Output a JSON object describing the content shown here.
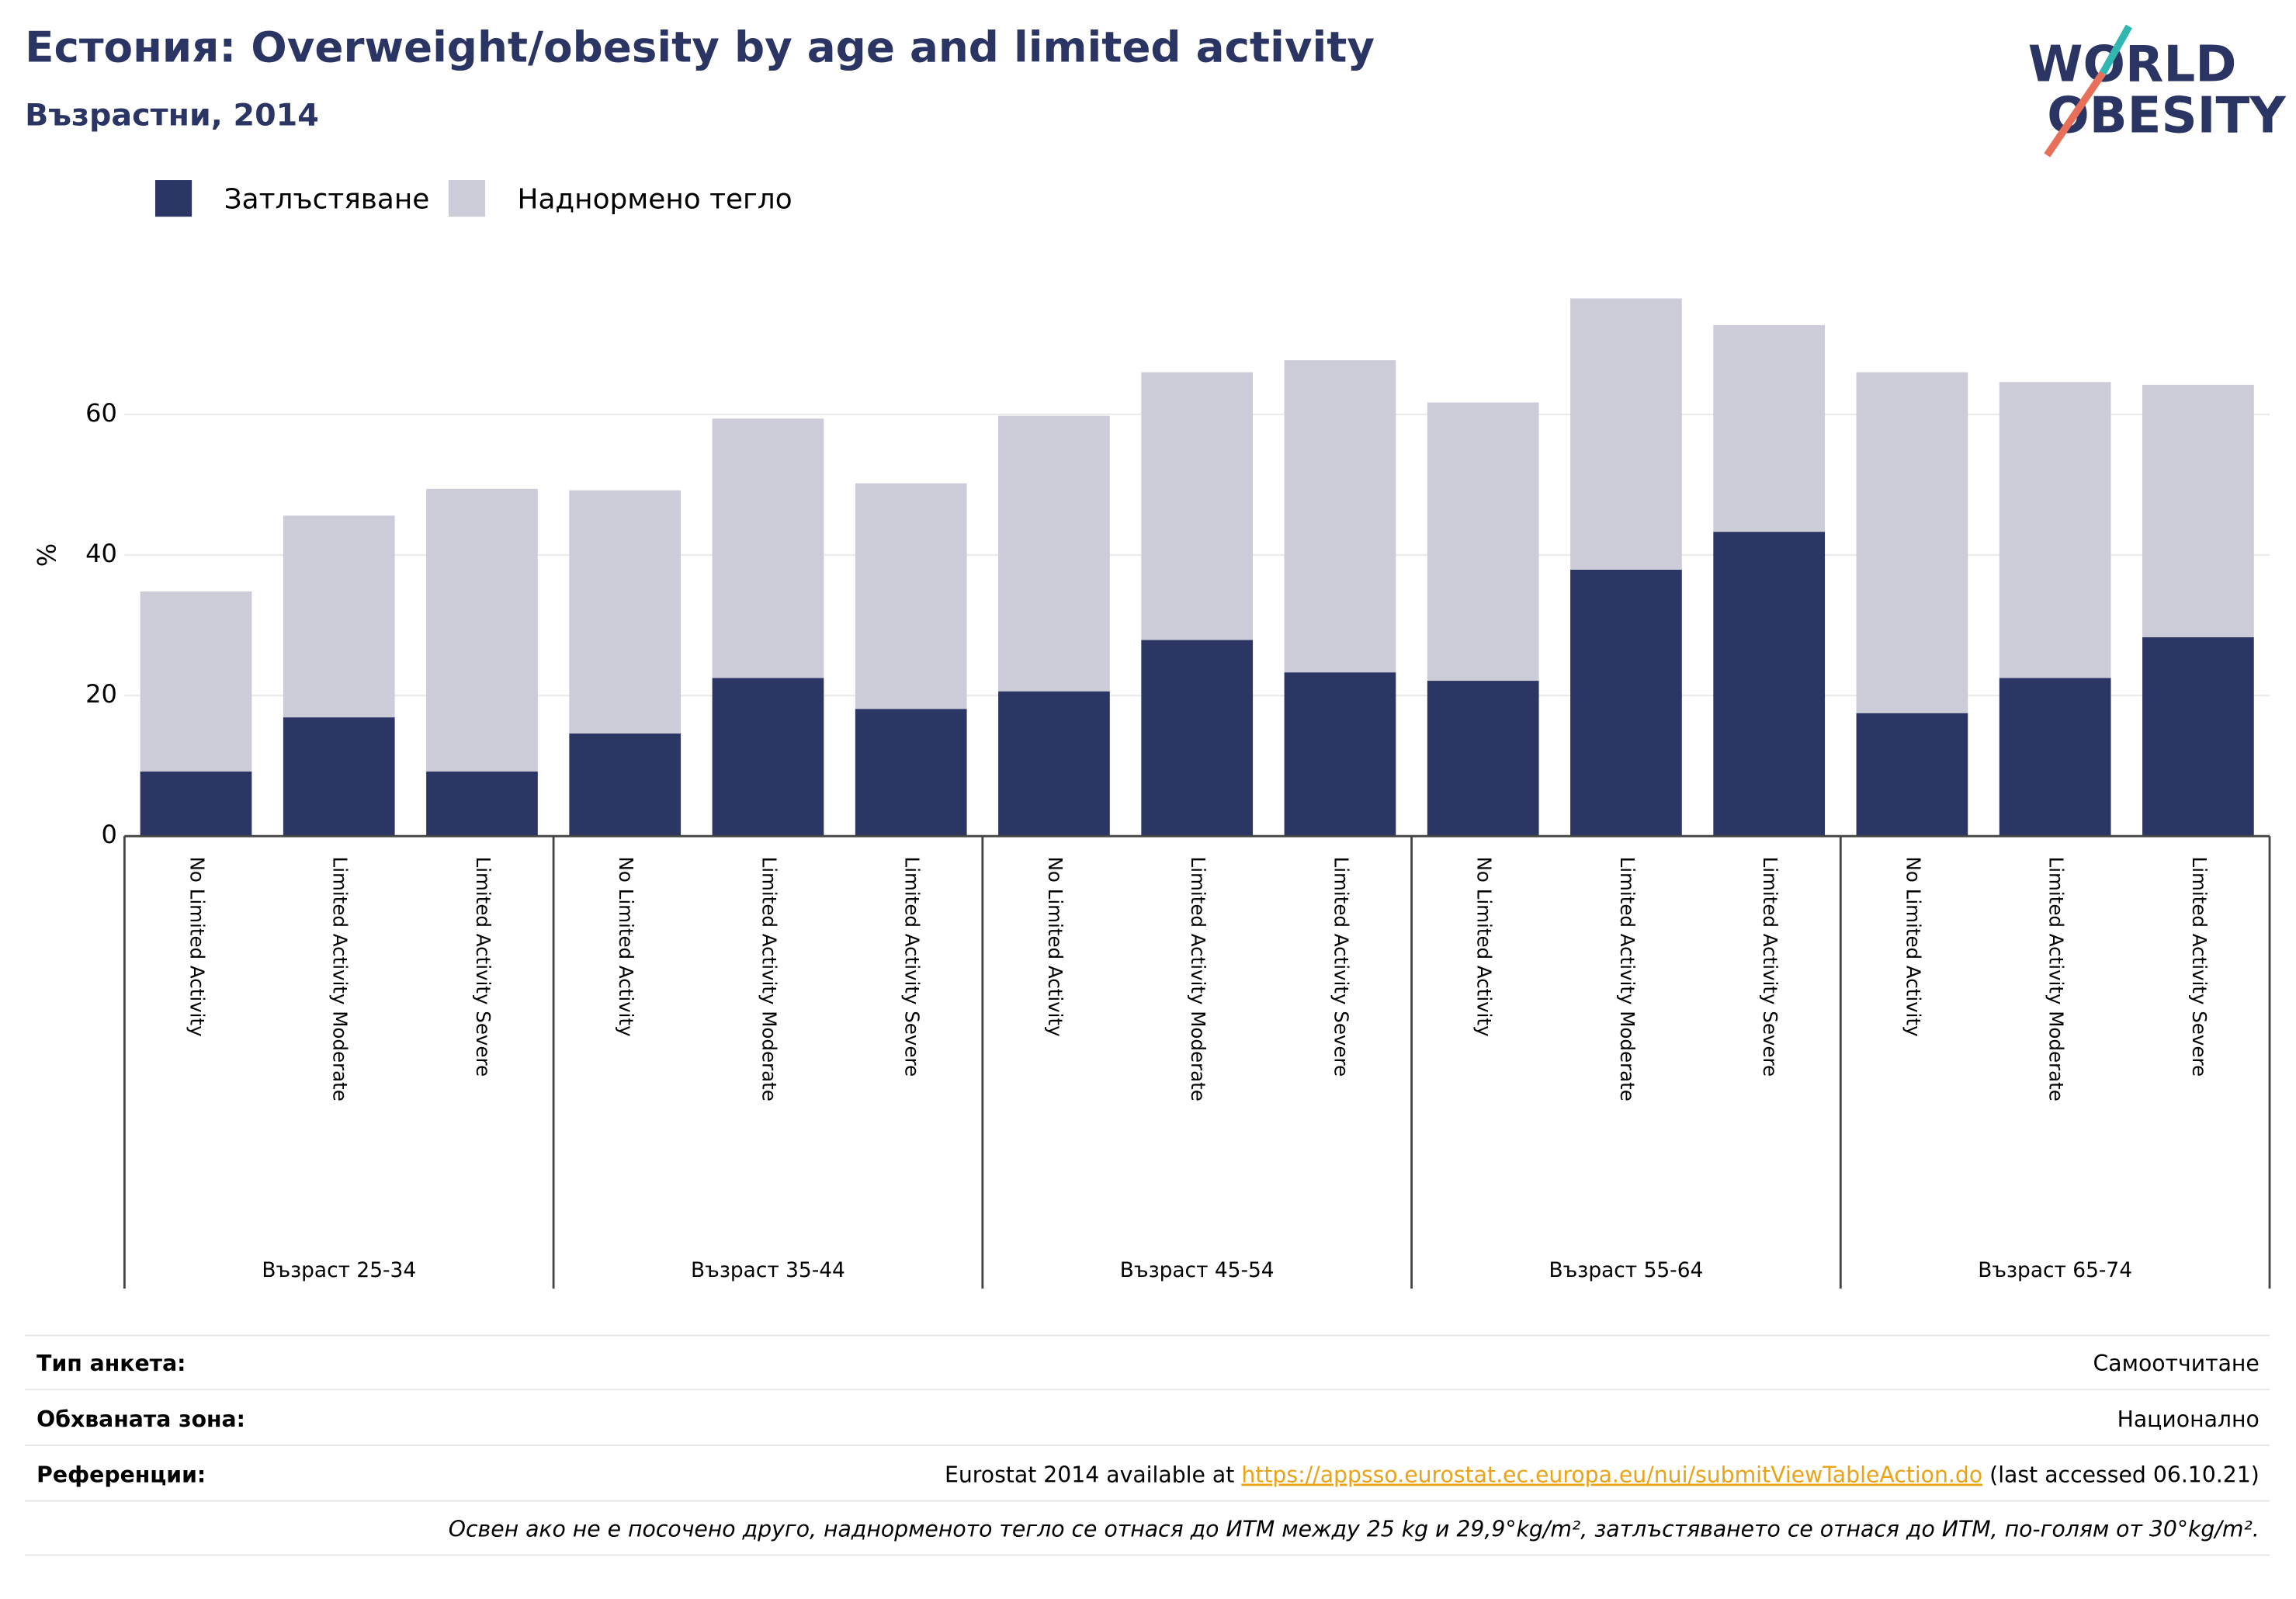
{
  "chart_data": {
    "type": "stacked_bar",
    "title": "Естония: Overweight/obesity by age and limited activity",
    "subtitle": "Възрастни, 2014",
    "y_label": "%",
    "categories": [
      "No Limited Activity",
      "Limited Activity Moderate",
      "Limited Activity Severe",
      "No Limited Activity",
      "Limited Activity Moderate",
      "Limited Activity Severe",
      "No Limited Activity",
      "Limited Activity Moderate",
      "Limited Activity Severe",
      "No Limited Activity",
      "Limited Activity Moderate",
      "Limited Activity Severe",
      "No Limited Activity",
      "Limited Activity Moderate",
      "Limited Activity Severe"
    ],
    "groups": [
      "Възраст 25-34",
      "Възраст 35-44",
      "Възраст 45-54",
      "Възраст 55-64",
      "Възраст 65-74"
    ],
    "series": [
      {
        "name": "Затлъстяване",
        "color": "#2b3664",
        "values": [
          9.2,
          16.9,
          9.2,
          14.6,
          22.5,
          18.1,
          20.6,
          27.9,
          23.3,
          22.1,
          37.9,
          43.3,
          17.5,
          22.5,
          28.3
        ]
      },
      {
        "name": "Наднормено тегло",
        "color": "#cbccd8",
        "values": [
          25.6,
          28.7,
          40.2,
          34.6,
          36.9,
          32.1,
          39.2,
          38.1,
          44.4,
          39.6,
          38.6,
          29.4,
          48.5,
          42.1,
          35.9
        ]
      }
    ],
    "ylim": [
      0,
      80
    ],
    "yticks": [
      0,
      20,
      40,
      60
    ],
    "grid": true,
    "legend": "top-left"
  },
  "logo": {
    "lines": [
      "WORLD",
      "OBESITY"
    ]
  },
  "footer": {
    "rows": [
      {
        "label": "Тип анкета:",
        "value": "Самоотчитане"
      },
      {
        "label": "Обхваната зона:",
        "value": "Национално"
      }
    ],
    "reference": {
      "label": "Референции:",
      "before": "Eurostat 2014 available at ",
      "link": "https://appsso.eurostat.ec.europa.eu/nui/submitViewTableAction.do",
      "after": " (last accessed 06.10.21)"
    },
    "note": "Освен ако не е посочено друго, наднорменото тегло се отнася до ИТМ между 25 kg и 29,9°kg/m², затлъстяването се отнася до ИТМ, по-голям от 30°kg/m²."
  }
}
